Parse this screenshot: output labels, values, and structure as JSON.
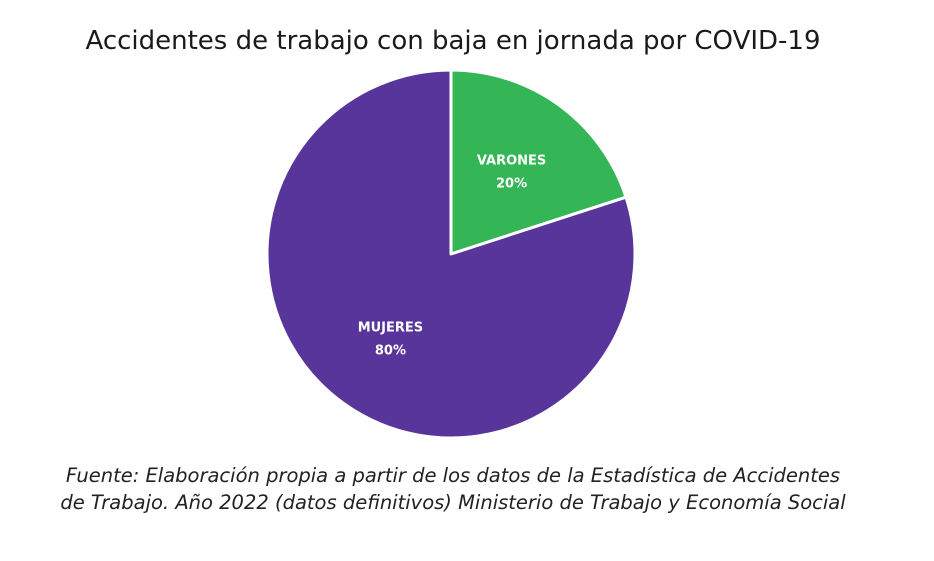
{
  "chart_data": {
    "type": "pie",
    "title": "Accidentes de trabajo con baja en jornada por COVID-19",
    "slices": [
      {
        "label": "VARONES",
        "value": 20,
        "value_label": "20%",
        "color": "#34b556"
      },
      {
        "label": "MUJERES",
        "value": 80,
        "value_label": "80%",
        "color": "#58359b"
      }
    ],
    "start": "12 o'clock",
    "direction": "clockwise",
    "legend": "none"
  },
  "source": {
    "line1": "Fuente: Elaboración propia a partir de los datos de la Estadística de Accidentes",
    "line2": "de Trabajo. Año 2022 (datos definitivos) Ministerio de Trabajo y Economía Social"
  }
}
